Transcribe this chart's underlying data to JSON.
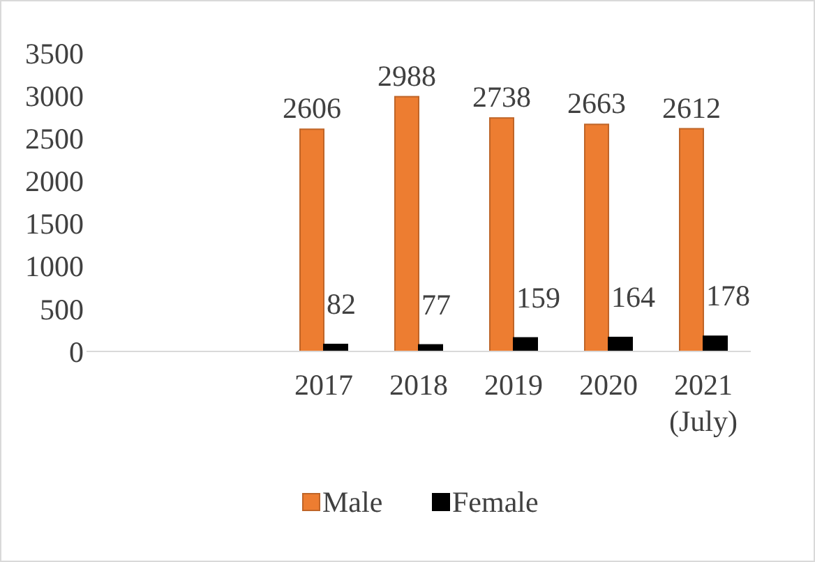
{
  "chart_data": {
    "type": "bar",
    "categories": [
      null,
      null,
      "2017",
      "2018",
      "2019",
      "2020",
      "2021\n(July)"
    ],
    "series": [
      {
        "name": "Male",
        "color": "#ed7d31",
        "values": [
          null,
          null,
          2606,
          2988,
          2738,
          2663,
          2612
        ]
      },
      {
        "name": "Female",
        "color": "#000000",
        "values": [
          null,
          null,
          82,
          77,
          159,
          164,
          178
        ]
      }
    ],
    "ylim": [
      0,
      3500
    ],
    "yticks": [
      0,
      500,
      1000,
      1500,
      2000,
      2500,
      3000,
      3500
    ],
    "data_labels": true,
    "grid": false,
    "legend": "bottom"
  }
}
